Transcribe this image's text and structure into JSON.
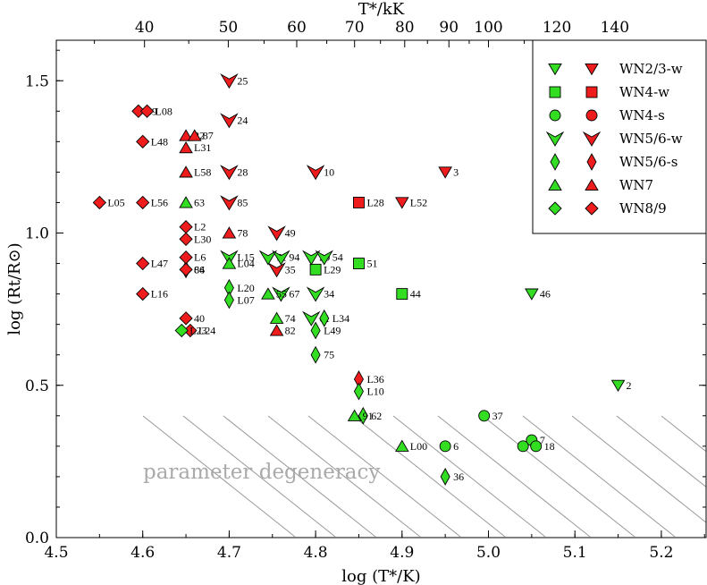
{
  "chart_data": {
    "type": "scatter",
    "xlabel": "log (T*/K)",
    "ylabel": "log (Rt/R⊙)",
    "top_xlabel": "T*/kK",
    "xlim": [
      4.5,
      5.25
    ],
    "ylim": [
      0.0,
      1.65
    ],
    "x_ticks": [
      "4.5",
      "4.6",
      "4.7",
      "4.8",
      "4.9",
      "5.0",
      "5.1",
      "5.2"
    ],
    "y_ticks": [
      "0.0",
      "0.5",
      "1.0",
      "1.5"
    ],
    "top_ticks": [
      "40",
      "50",
      "60",
      "70",
      "80",
      "90",
      "100",
      "120",
      "140"
    ],
    "top_tick_values": [
      40,
      50,
      60,
      70,
      80,
      90,
      100,
      120,
      140
    ],
    "region_label": "parameter degeneracy",
    "legend_position": "top-right",
    "colors": {
      "green": "#33dd22",
      "red": "#ee1c1c"
    },
    "series": [
      {
        "name": "WN2/3-w",
        "marker": "triangle-down",
        "points": [
          {
            "x": 4.95,
            "y": 1.2,
            "label": "3",
            "color": "red"
          },
          {
            "x": 4.9,
            "y": 1.1,
            "label": "L52",
            "color": "red"
          },
          {
            "x": 5.05,
            "y": 0.8,
            "label": "46",
            "color": "green"
          },
          {
            "x": 5.15,
            "y": 0.5,
            "label": "2",
            "color": "green"
          }
        ]
      },
      {
        "name": "WN4-w",
        "marker": "square",
        "points": [
          {
            "x": 4.85,
            "y": 1.1,
            "label": "L28",
            "color": "red"
          },
          {
            "x": 4.85,
            "y": 0.9,
            "label": "51",
            "color": "green"
          },
          {
            "x": 4.9,
            "y": 0.8,
            "label": "44",
            "color": "green"
          },
          {
            "x": 4.8,
            "y": 0.88,
            "label": "L29",
            "color": "green"
          }
        ]
      },
      {
        "name": "WN4-s",
        "marker": "circle",
        "points": [
          {
            "x": 4.995,
            "y": 0.4,
            "label": "37",
            "color": "green"
          },
          {
            "x": 4.95,
            "y": 0.3,
            "label": "6",
            "color": "green"
          },
          {
            "x": 5.05,
            "y": 0.32,
            "label": "7",
            "color": "green"
          },
          {
            "x": 5.04,
            "y": 0.3,
            "label": "1",
            "color": "green"
          },
          {
            "x": 5.055,
            "y": 0.3,
            "label": "18",
            "color": "green"
          }
        ]
      },
      {
        "name": "WN5/6-w",
        "marker": "arrowhead-down",
        "points": [
          {
            "x": 4.7,
            "y": 1.5,
            "label": "25",
            "color": "red"
          },
          {
            "x": 4.7,
            "y": 1.37,
            "label": "24",
            "color": "red"
          },
          {
            "x": 4.7,
            "y": 1.2,
            "label": "28",
            "color": "red"
          },
          {
            "x": 4.8,
            "y": 1.2,
            "label": "10",
            "color": "red"
          },
          {
            "x": 4.7,
            "y": 1.1,
            "label": "85",
            "color": "red"
          },
          {
            "x": 4.755,
            "y": 1.0,
            "label": "49",
            "color": "red"
          },
          {
            "x": 4.755,
            "y": 0.88,
            "label": "35",
            "color": "red"
          },
          {
            "x": 4.7,
            "y": 0.92,
            "label": "L15",
            "color": "green"
          },
          {
            "x": 4.745,
            "y": 0.92,
            "label": "71",
            "color": "green"
          },
          {
            "x": 4.76,
            "y": 0.92,
            "label": "94",
            "color": "green"
          },
          {
            "x": 4.795,
            "y": 0.92,
            "label": "20",
            "color": "green"
          },
          {
            "x": 4.81,
            "y": 0.92,
            "label": "54",
            "color": "green"
          },
          {
            "x": 4.76,
            "y": 0.8,
            "label": "67",
            "color": "green"
          },
          {
            "x": 4.8,
            "y": 0.8,
            "label": "34",
            "color": "green"
          },
          {
            "x": 4.795,
            "y": 0.72,
            "label": "61",
            "color": "green"
          }
        ]
      },
      {
        "name": "WN5/6-s",
        "marker": "thin-diamond",
        "points": [
          {
            "x": 4.85,
            "y": 0.52,
            "label": "L36",
            "color": "red"
          },
          {
            "x": 4.65,
            "y": 0.88,
            "label": "84",
            "color": "green"
          },
          {
            "x": 4.7,
            "y": 0.82,
            "label": "L20",
            "color": "green"
          },
          {
            "x": 4.7,
            "y": 0.78,
            "label": "L07",
            "color": "green"
          },
          {
            "x": 4.8,
            "y": 0.68,
            "label": "L49",
            "color": "green"
          },
          {
            "x": 4.81,
            "y": 0.72,
            "label": "L34",
            "color": "green"
          },
          {
            "x": 4.8,
            "y": 0.6,
            "label": "75",
            "color": "green"
          },
          {
            "x": 4.85,
            "y": 0.48,
            "label": "L10",
            "color": "green"
          },
          {
            "x": 4.855,
            "y": 0.4,
            "label": "62",
            "color": "green"
          },
          {
            "x": 4.95,
            "y": 0.2,
            "label": "36",
            "color": "green"
          }
        ]
      },
      {
        "name": "WN7",
        "marker": "triangle-up",
        "points": [
          {
            "x": 4.65,
            "y": 1.32,
            "label": "22",
            "color": "red"
          },
          {
            "x": 4.66,
            "y": 1.32,
            "label": "87",
            "color": "red"
          },
          {
            "x": 4.65,
            "y": 1.28,
            "label": "L31",
            "color": "red"
          },
          {
            "x": 4.65,
            "y": 1.2,
            "label": "L58",
            "color": "red"
          },
          {
            "x": 4.7,
            "y": 1.0,
            "label": "78",
            "color": "red"
          },
          {
            "x": 4.755,
            "y": 0.68,
            "label": "82",
            "color": "red"
          },
          {
            "x": 4.65,
            "y": 1.1,
            "label": "63",
            "color": "green"
          },
          {
            "x": 4.7,
            "y": 0.9,
            "label": "L04",
            "color": "green"
          },
          {
            "x": 4.745,
            "y": 0.8,
            "label": "55",
            "color": "green"
          },
          {
            "x": 4.755,
            "y": 0.72,
            "label": "74",
            "color": "green"
          },
          {
            "x": 4.845,
            "y": 0.4,
            "label": "91",
            "color": "green"
          },
          {
            "x": 4.9,
            "y": 0.3,
            "label": "L00",
            "color": "green"
          }
        ]
      },
      {
        "name": "WN8/9",
        "marker": "diamond",
        "points": [
          {
            "x": 4.595,
            "y": 1.4,
            "label": "89",
            "color": "red"
          },
          {
            "x": 4.605,
            "y": 1.4,
            "label": "L08",
            "color": "red"
          },
          {
            "x": 4.6,
            "y": 1.3,
            "label": "L48",
            "color": "red"
          },
          {
            "x": 4.55,
            "y": 1.1,
            "label": "L05",
            "color": "red"
          },
          {
            "x": 4.6,
            "y": 1.1,
            "label": "L56",
            "color": "red"
          },
          {
            "x": 4.65,
            "y": 1.02,
            "label": "L2",
            "color": "red"
          },
          {
            "x": 4.65,
            "y": 0.98,
            "label": "L30",
            "color": "red"
          },
          {
            "x": 4.6,
            "y": 0.9,
            "label": "L47",
            "color": "red"
          },
          {
            "x": 4.65,
            "y": 0.92,
            "label": "L6",
            "color": "red"
          },
          {
            "x": 4.65,
            "y": 0.88,
            "label": "66",
            "color": "red"
          },
          {
            "x": 4.6,
            "y": 0.8,
            "label": "L16",
            "color": "red"
          },
          {
            "x": 4.65,
            "y": 0.72,
            "label": "40",
            "color": "red"
          },
          {
            "x": 4.655,
            "y": 0.68,
            "label": "L24",
            "color": "red"
          },
          {
            "x": 4.645,
            "y": 0.68,
            "label": "L23",
            "color": "green"
          }
        ]
      }
    ]
  }
}
